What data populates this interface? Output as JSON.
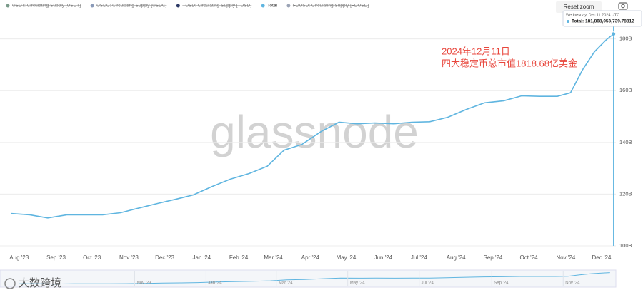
{
  "chart_data": {
    "type": "line",
    "legend": [
      {
        "name": "USDT: Circulating Supply [USDT]",
        "color": "#7a9a8a",
        "hidden": true
      },
      {
        "name": "USDC: Circulating Supply [USDC]",
        "color": "#8a9ab8",
        "hidden": true
      },
      {
        "name": "TUSD: Circulating Supply [TUSD]",
        "color": "#2d3a66",
        "hidden": true
      },
      {
        "name": "Total",
        "color": "#5fb5e0",
        "hidden": false
      },
      {
        "name": "FDUSD: Circulating Supply [FDUSD]",
        "color": "#9aa3b5",
        "hidden": true
      }
    ],
    "reset_button": "Reset zoom",
    "tooltip": {
      "date": "Wednesday, Dec 11 2024 UTC",
      "text": "Total: 181,868,053,739.78812"
    },
    "annotation": [
      "2024年12月11日",
      "四大稳定币总市值1818.68亿美金"
    ],
    "watermark": "glassnode",
    "corner_watermark": "大数跨境",
    "x": [
      "2023-07-25",
      "2023-08-10",
      "2023-08-25",
      "2023-09-10",
      "2023-09-25",
      "2023-10-10",
      "2023-10-25",
      "2023-11-10",
      "2023-11-25",
      "2023-12-10",
      "2023-12-25",
      "2024-01-10",
      "2024-01-25",
      "2024-02-10",
      "2024-02-25",
      "2024-03-10",
      "2024-03-25",
      "2024-04-10",
      "2024-04-25",
      "2024-05-10",
      "2024-05-25",
      "2024-06-10",
      "2024-06-25",
      "2024-07-10",
      "2024-07-25",
      "2024-08-10",
      "2024-08-25",
      "2024-09-10",
      "2024-09-25",
      "2024-10-10",
      "2024-10-25",
      "2024-11-05",
      "2024-11-15",
      "2024-11-25",
      "2024-12-05",
      "2024-12-11"
    ],
    "series": [
      {
        "name": "Total",
        "color": "#5fb5e0",
        "values": [
          112.5,
          112,
          110.8,
          112,
          112,
          112,
          112.8,
          114.7,
          116.4,
          118,
          119.7,
          123,
          125.8,
          128,
          130.8,
          137,
          139.2,
          144.2,
          147.8,
          147.2,
          147.5,
          147.2,
          147.8,
          148,
          149.7,
          152.8,
          155.3,
          156.1,
          158,
          157.8,
          157.8,
          159.2,
          168,
          175,
          179.7,
          181.9
        ]
      }
    ],
    "xlim": [
      "2023-07-16",
      "2024-12-13"
    ],
    "xticks": [
      {
        "value": "2023-08-01",
        "label": "Aug '23"
      },
      {
        "value": "2023-09-01",
        "label": "Sep '23"
      },
      {
        "value": "2023-10-01",
        "label": "Oct '23"
      },
      {
        "value": "2023-11-01",
        "label": "Nov '23"
      },
      {
        "value": "2023-12-01",
        "label": "Dec '23"
      },
      {
        "value": "2024-01-01",
        "label": "Jan '24"
      },
      {
        "value": "2024-02-01",
        "label": "Feb '24"
      },
      {
        "value": "2024-03-01",
        "label": "Mar '24"
      },
      {
        "value": "2024-04-01",
        "label": "Apr '24"
      },
      {
        "value": "2024-05-01",
        "label": "May '24"
      },
      {
        "value": "2024-06-01",
        "label": "Jun '24"
      },
      {
        "value": "2024-07-01",
        "label": "Jul '24"
      },
      {
        "value": "2024-08-01",
        "label": "Aug '24"
      },
      {
        "value": "2024-09-01",
        "label": "Sep '24"
      },
      {
        "value": "2024-10-01",
        "label": "Oct '24"
      },
      {
        "value": "2024-11-01",
        "label": "Nov '24"
      },
      {
        "value": "2024-12-01",
        "label": "Dec '24"
      }
    ],
    "ylim": [
      100,
      189
    ],
    "yticks": [
      {
        "value": 100,
        "label": "100B"
      },
      {
        "value": 120,
        "label": "120B"
      },
      {
        "value": 140,
        "label": "140B"
      },
      {
        "value": 160,
        "label": "160B"
      },
      {
        "value": 180,
        "label": "180B"
      }
    ],
    "grid": true,
    "navigator": {
      "xlim": [
        "2023-07-09",
        "2024-12-16"
      ],
      "xticks": [
        {
          "value": "2023-11-01",
          "label": "Nov '23"
        },
        {
          "value": "2024-01-01",
          "label": "Jan '24"
        },
        {
          "value": "2024-03-01",
          "label": "Mar '24"
        },
        {
          "value": "2024-05-01",
          "label": "May '24"
        },
        {
          "value": "2024-07-01",
          "label": "Jul '24"
        },
        {
          "value": "2024-09-01",
          "label": "Sep '24"
        },
        {
          "value": "2024-11-01",
          "label": "Nov '24"
        }
      ]
    }
  }
}
